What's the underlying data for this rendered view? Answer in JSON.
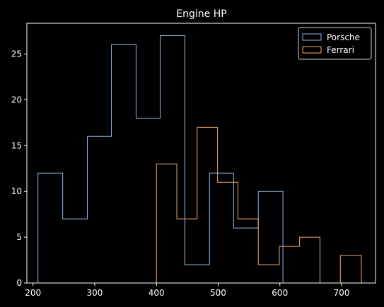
{
  "chart_data": {
    "type": "histogram",
    "title": "Engine HP",
    "xlabel": "",
    "ylabel": "",
    "xlim": [
      190,
      755
    ],
    "ylim": [
      0,
      28.35
    ],
    "xticks": [
      200,
      300,
      400,
      500,
      600,
      700
    ],
    "yticks": [
      0,
      5,
      10,
      15,
      20,
      25
    ],
    "grid": false,
    "legend_position": "top-right",
    "series": [
      {
        "name": "Porsche",
        "color": "#8fb8e8",
        "bin_edges": [
          208,
          248,
          288,
          327,
          367,
          406,
          446,
          486,
          525,
          565,
          605
        ],
        "counts": [
          12,
          7,
          16,
          26,
          18,
          27,
          2,
          12,
          6,
          10
        ]
      },
      {
        "name": "Ferrari",
        "color": "#f4a86b",
        "bin_edges": [
          400,
          433,
          466,
          499,
          532,
          565,
          599,
          632,
          665,
          698,
          732
        ],
        "counts": [
          13,
          7,
          17,
          11,
          7,
          2,
          4,
          5,
          0,
          3
        ]
      }
    ]
  }
}
